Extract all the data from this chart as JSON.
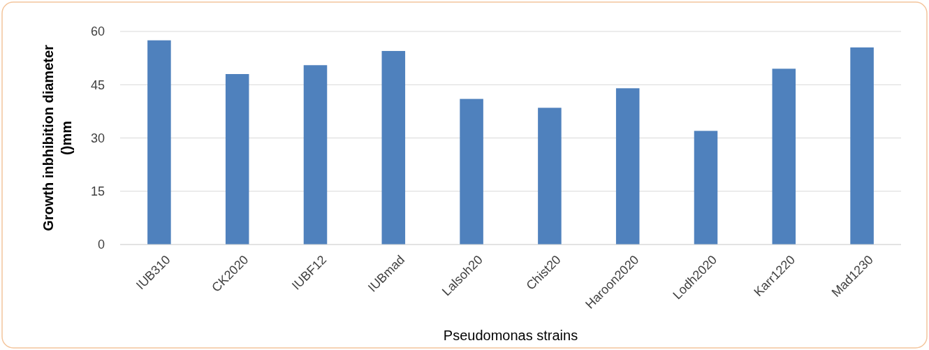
{
  "chart_data": {
    "type": "bar",
    "xlabel": "Pseudomonas strains",
    "ylabel": "Growth inbhibition diameter ()mm",
    "categories": [
      "IUB310",
      "CK2020",
      "IUBF12",
      "IUBmad",
      "Lalsoh20",
      "Chist20",
      "Haroon2020",
      "Lodh2020",
      "Karr1220",
      "Mad1230"
    ],
    "values": [
      57.5,
      48,
      50.5,
      54.5,
      41,
      38.5,
      44,
      32,
      49.5,
      55.5
    ],
    "color": "#4f81bd",
    "ylim": [
      0,
      60
    ],
    "yticks": [
      0,
      15,
      30,
      45,
      60
    ],
    "grid": "y"
  }
}
